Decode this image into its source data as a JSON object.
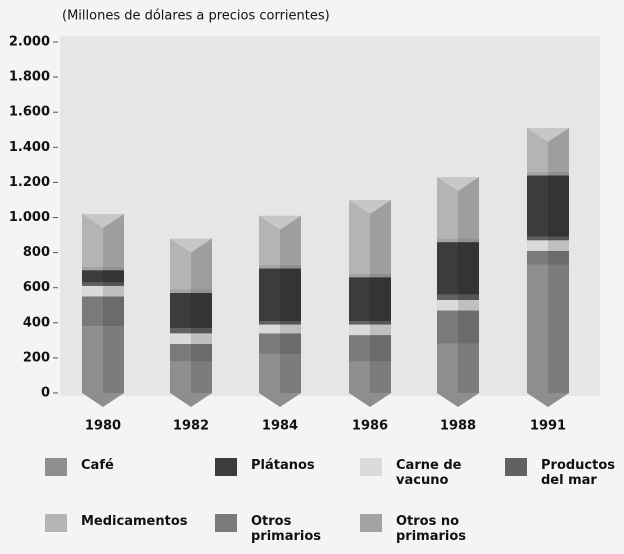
{
  "chart_data": {
    "type": "stacked_bar",
    "subtitle": "(Millones de dólares a precios corrientes)",
    "categories": [
      "1980",
      "1982",
      "1984",
      "1986",
      "1988",
      "1991"
    ],
    "series": [
      {
        "name": "Café",
        "color": "#8e8e8e",
        "values": [
          380,
          180,
          220,
          180,
          280,
          730
        ]
      },
      {
        "name": "Otros primarios",
        "color": "#7a7a7a",
        "values": [
          170,
          100,
          120,
          150,
          190,
          80
        ]
      },
      {
        "name": "Carne de vacuno",
        "color": "#dadada",
        "values": [
          60,
          60,
          50,
          60,
          60,
          60
        ]
      },
      {
        "name": "Productos del mar",
        "color": "#606060",
        "values": [
          20,
          30,
          20,
          20,
          30,
          20
        ]
      },
      {
        "name": "Plátanos",
        "color": "#3c3c3c",
        "values": [
          70,
          200,
          300,
          250,
          300,
          350
        ]
      },
      {
        "name": "Otros no primarios",
        "color": "#a4a4a4",
        "values": [
          20,
          20,
          20,
          20,
          20,
          20
        ]
      },
      {
        "name": "Medicamentos",
        "color": "#b4b4b4",
        "values": [
          300,
          290,
          280,
          420,
          350,
          250
        ]
      }
    ],
    "ylim": [
      0,
      2000
    ],
    "yticks": [
      0,
      200,
      400,
      600,
      800,
      {
        "value": 1000,
        "label": "1.000"
      },
      {
        "value": 1200,
        "label": "1.200"
      },
      {
        "value": 1400,
        "label": "1.400"
      },
      {
        "value": 1600,
        "label": "1.600"
      },
      {
        "value": 1800,
        "label": "1.800"
      },
      {
        "value": 2000,
        "label": "2.000"
      }
    ]
  }
}
